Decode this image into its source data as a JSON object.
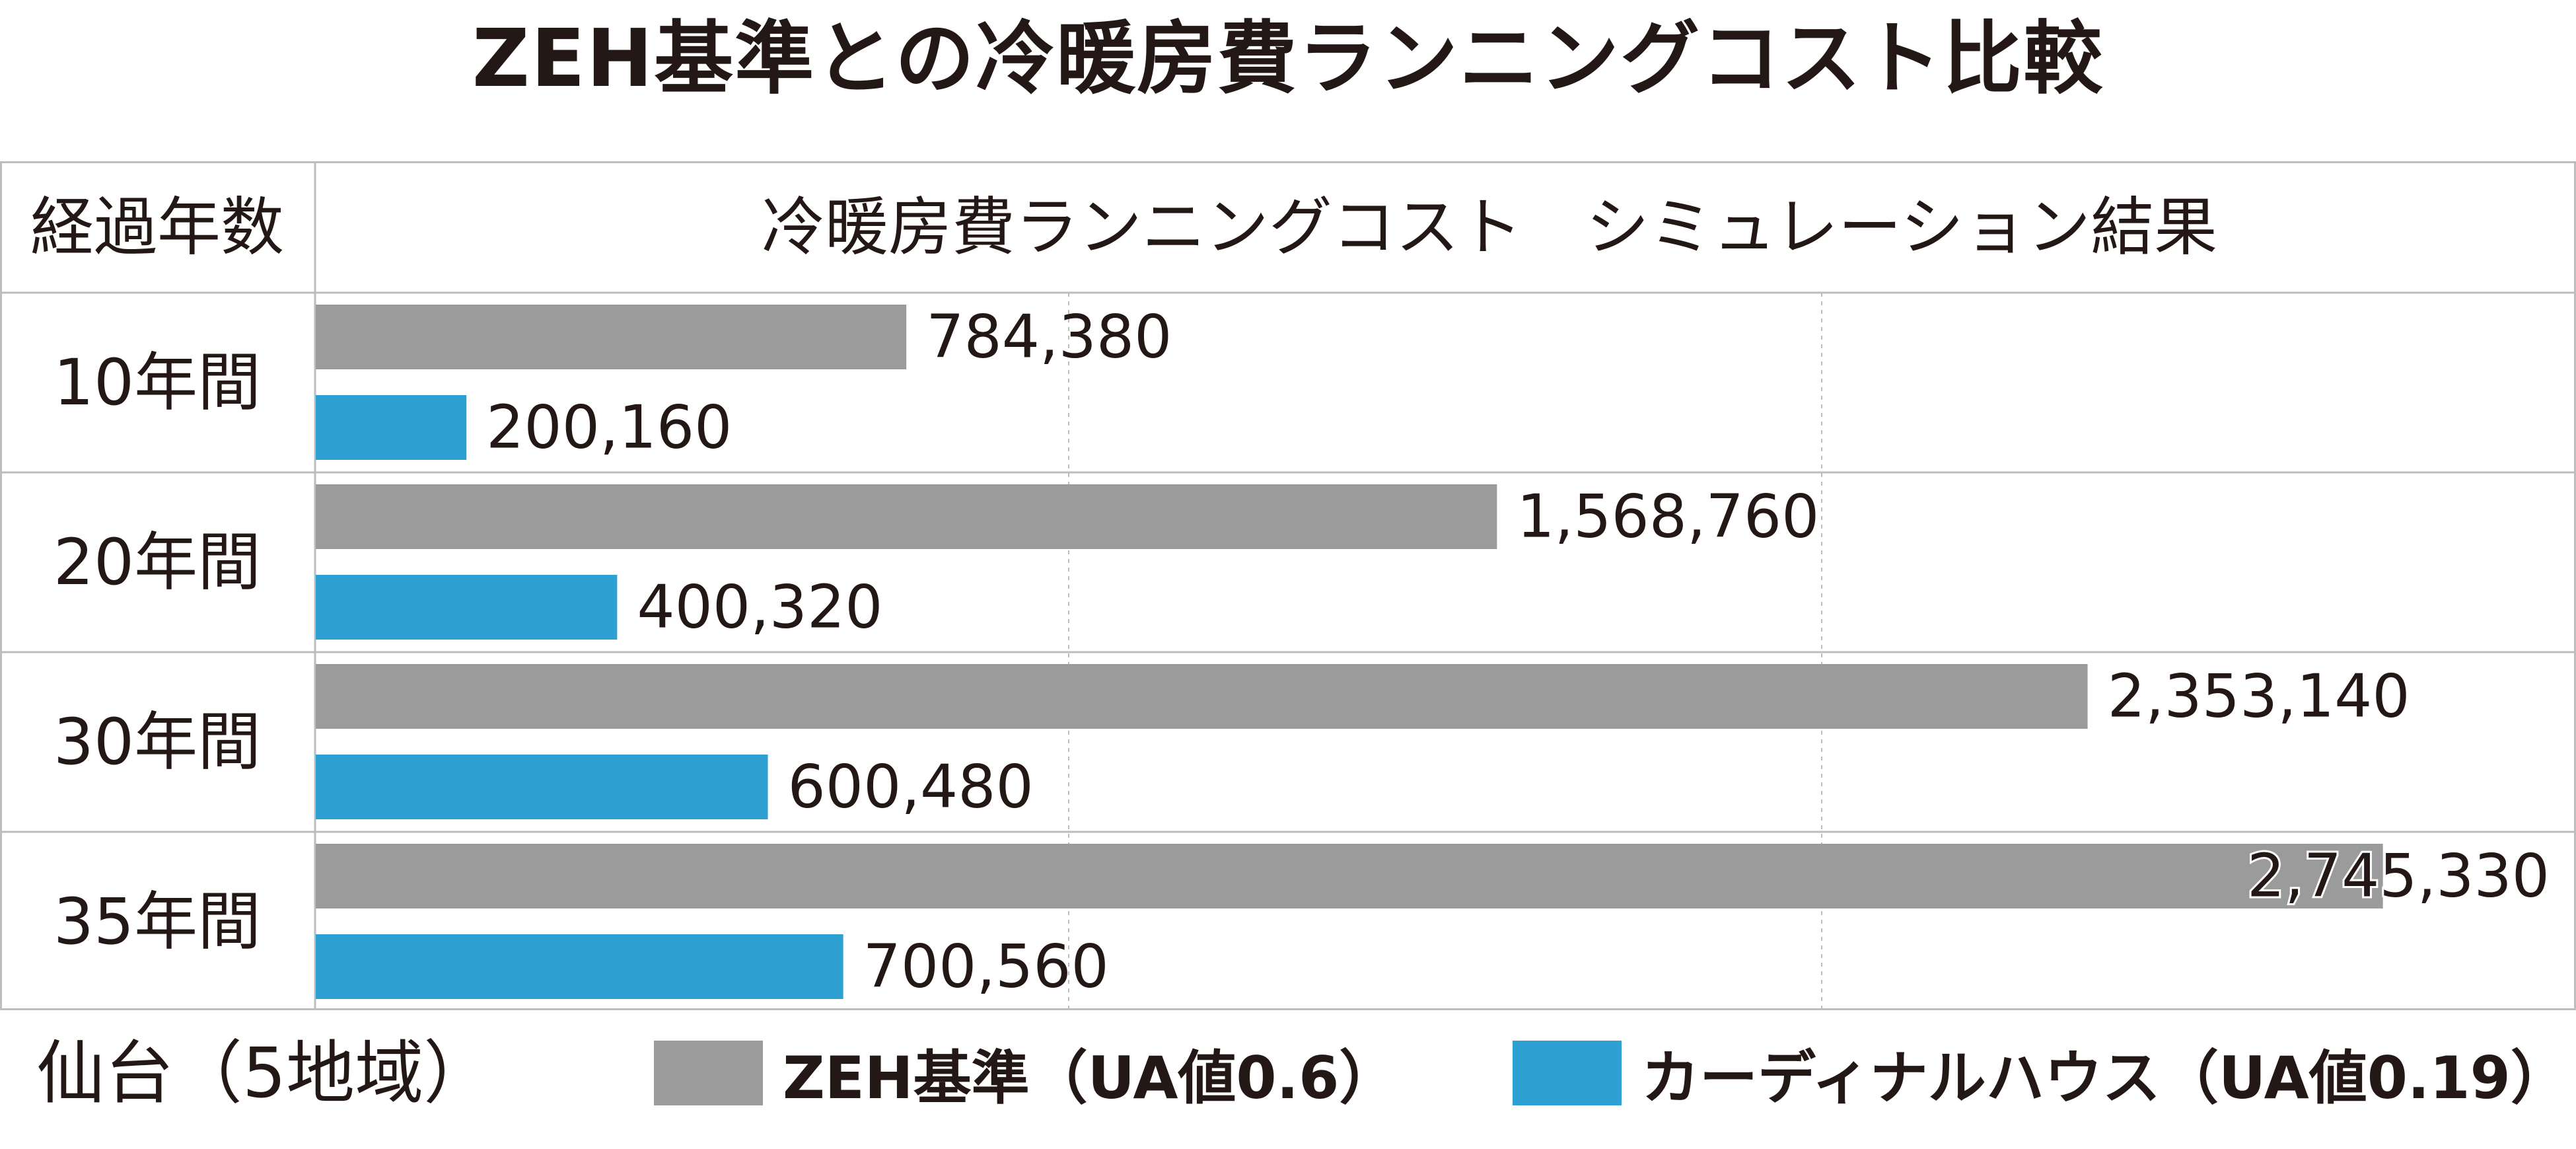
{
  "title": "ZEH基準との冷暖房費ランニングコスト比較",
  "table": {
    "header_left": "経過年数",
    "header_right": "冷暖房費ランニングコスト　シミュレーション結果"
  },
  "region_label": "仙台（5地域）",
  "colors": {
    "zeh": "#9b9b9b",
    "cardinal": "#2ea0d2",
    "grid": "#bdbdbd",
    "text": "#231815"
  },
  "legend": [
    {
      "label": "ZEH基準（UA値0.6）",
      "color": "#9b9b9b"
    },
    {
      "label": "カーディナルハウス（UA値0.19）",
      "color": "#2ea0d2"
    }
  ],
  "chart_data": {
    "type": "bar",
    "orientation": "horizontal",
    "title": "ZEH基準との冷暖房費ランニングコスト比較",
    "categories": [
      "10年間",
      "20年間",
      "30年間",
      "35年間"
    ],
    "series": [
      {
        "name": "ZEH基準（UA値0.6）",
        "values": [
          784380,
          1568760,
          2353140,
          2745330
        ],
        "labels": [
          "784,380",
          "1,568,760",
          "2,353,140",
          "2,745,330"
        ]
      },
      {
        "name": "カーディナルハウス（UA値0.19）",
        "values": [
          200160,
          400320,
          600480,
          700560
        ],
        "labels": [
          "200,160",
          "400,320",
          "600,480",
          "700,560"
        ]
      }
    ],
    "xlim": [
      0,
      3000000
    ],
    "grid": true,
    "legend_position": "bottom"
  }
}
